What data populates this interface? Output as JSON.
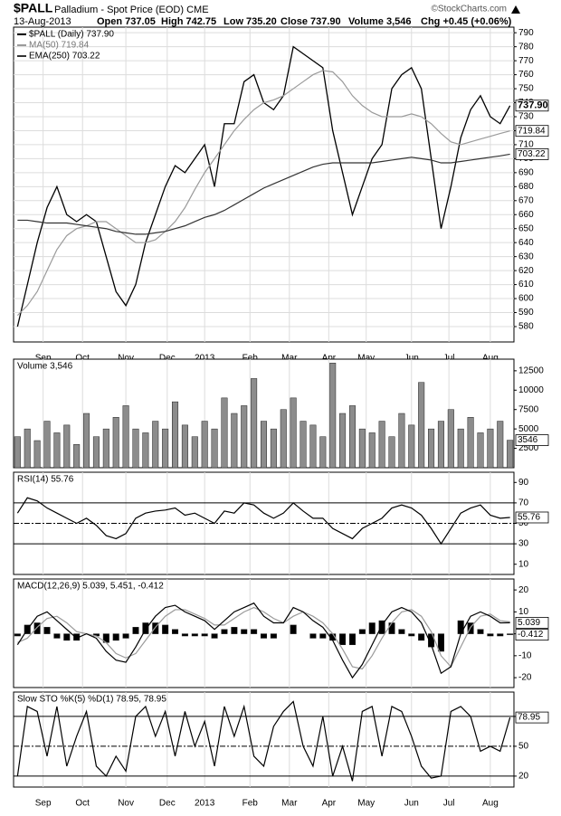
{
  "header": {
    "symbol": "$PALL",
    "name": "Palladium - Spot Price (EOD) CME",
    "source": "©StockCharts.com",
    "date": "13-Aug-2013",
    "stats": [
      "Open 737.05",
      "High 742.75",
      "Low 735.20",
      "Close 737.90",
      "Volume 3,546",
      "Chg +0.45 (+0.06%)"
    ]
  },
  "chart_data": [
    {
      "type": "line",
      "grid": true,
      "x": [
        0,
        5,
        10,
        15,
        20,
        25,
        30,
        35,
        40,
        45,
        50,
        55,
        60,
        65,
        70,
        75,
        80,
        85,
        90,
        95,
        100,
        105,
        110,
        115,
        120,
        125,
        130,
        135,
        140,
        145,
        150,
        155,
        160,
        165,
        170,
        175,
        180,
        185,
        190,
        195,
        200,
        205,
        210,
        215,
        220,
        225,
        230,
        235,
        240,
        245,
        250
      ],
      "xlim": [
        -2,
        252
      ],
      "xticks": [
        {
          "value": 13,
          "label": "Sep"
        },
        {
          "value": 33,
          "label": "Oct"
        },
        {
          "value": 55,
          "label": "Nov"
        },
        {
          "value": 76,
          "label": "Dec"
        },
        {
          "value": 95,
          "label": "2013"
        },
        {
          "value": 118,
          "label": "Feb"
        },
        {
          "value": 138,
          "label": "Mar"
        },
        {
          "value": 158,
          "label": "Apr"
        },
        {
          "value": 177,
          "label": "May"
        },
        {
          "value": 200,
          "label": "Jun"
        },
        {
          "value": 219,
          "label": "Jul"
        },
        {
          "value": 240,
          "label": "Aug"
        }
      ],
      "ylim": [
        569,
        794
      ],
      "yticks": [
        580,
        590,
        600,
        610,
        620,
        630,
        640,
        650,
        660,
        670,
        680,
        690,
        700,
        710,
        720,
        730,
        740,
        750,
        760,
        770,
        780,
        790
      ],
      "series": [
        {
          "name": "$PALL (Daily) 737.90",
          "color": "#000000",
          "style": "line",
          "end_label": "737.90",
          "values": [
            580,
            610,
            640,
            665,
            680,
            660,
            655,
            660,
            655,
            630,
            605,
            595,
            610,
            640,
            660,
            680,
            695,
            690,
            700,
            710,
            680,
            725,
            725,
            755,
            760,
            740,
            735,
            745,
            780,
            775,
            770,
            765,
            720,
            690,
            660,
            680,
            700,
            710,
            750,
            760,
            765,
            750,
            700,
            650,
            680,
            715,
            735,
            745,
            730,
            725,
            737.9
          ]
        },
        {
          "name": "MA(50) 719.84",
          "color": "#9a9a9a",
          "style": "line",
          "end_label": true,
          "values": [
            588,
            595,
            605,
            620,
            635,
            645,
            650,
            652,
            655,
            655,
            650,
            645,
            640,
            640,
            642,
            648,
            655,
            665,
            678,
            690,
            700,
            710,
            720,
            728,
            735,
            740,
            742,
            745,
            750,
            755,
            760,
            763,
            762,
            755,
            745,
            738,
            733,
            730,
            730,
            730,
            732,
            730,
            725,
            718,
            712,
            710,
            712,
            714,
            716,
            718,
            719.84
          ]
        },
        {
          "name": "EMA(250) 703.22",
          "color": "#333333",
          "style": "line",
          "end_label": true,
          "values": [
            656,
            656,
            655,
            654,
            654,
            654,
            653,
            652,
            651,
            650,
            648,
            647,
            646,
            646,
            647,
            648,
            650,
            652,
            655,
            658,
            660,
            663,
            667,
            671,
            675,
            679,
            682,
            685,
            688,
            691,
            694,
            696,
            697,
            697,
            697,
            697,
            697,
            698,
            699,
            700,
            701,
            700,
            699,
            697,
            697,
            698,
            699,
            700,
            701,
            702,
            703.22
          ]
        }
      ]
    },
    {
      "type": "bar",
      "title": "Volume 3,546",
      "ylim": [
        0,
        14000
      ],
      "yticks": [
        2500,
        5000,
        7500,
        10000,
        12500
      ],
      "series": [
        {
          "color": "#8c8c8c",
          "style": "bars",
          "end_label": true,
          "values": [
            4000,
            5000,
            3500,
            6000,
            4500,
            5500,
            3000,
            7000,
            4000,
            5000,
            6500,
            8000,
            5000,
            4500,
            6000,
            5000,
            8500,
            5500,
            4000,
            6000,
            5000,
            9000,
            7000,
            8000,
            11500,
            6000,
            5000,
            7500,
            9000,
            6000,
            5500,
            4000,
            13500,
            7000,
            8000,
            5000,
            4500,
            6000,
            4000,
            7000,
            5500,
            11000,
            5000,
            6000,
            7500,
            5000,
            6500,
            4500,
            5000,
            6000,
            3546
          ]
        }
      ]
    },
    {
      "type": "line",
      "title": "RSI(14) 55.76",
      "ylim": [
        0,
        100
      ],
      "yticks": [
        10,
        30,
        50,
        70,
        90
      ],
      "hlines": [
        {
          "value": 70,
          "style": "solid"
        },
        {
          "value": 50,
          "style": "dashdot"
        },
        {
          "value": 30,
          "style": "solid"
        }
      ],
      "series": [
        {
          "color": "#000000",
          "style": "line",
          "end_label": true,
          "values": [
            60,
            75,
            72,
            65,
            60,
            55,
            50,
            55,
            48,
            38,
            35,
            40,
            55,
            60,
            62,
            63,
            65,
            58,
            60,
            55,
            50,
            62,
            60,
            70,
            68,
            60,
            55,
            60,
            70,
            62,
            55,
            55,
            45,
            40,
            35,
            45,
            50,
            55,
            65,
            68,
            65,
            58,
            45,
            30,
            45,
            60,
            65,
            68,
            58,
            55,
            55.76
          ]
        }
      ]
    },
    {
      "type": "line",
      "title": "MACD(12,26,9) 5.039, 5.451, -0.412",
      "ylim": [
        -24.5,
        25
      ],
      "yticks": [
        -20,
        -10,
        0,
        10,
        20
      ],
      "series": [
        {
          "color": "#000000",
          "style": "bars",
          "end_label": true,
          "values": [
            -1,
            4,
            5,
            3,
            -2,
            -3,
            -3,
            0,
            -1,
            -4,
            -3,
            -2,
            3,
            5,
            5,
            4,
            2,
            -1,
            -1,
            -1,
            -2,
            2,
            3,
            2,
            2,
            -2,
            -2,
            0,
            4,
            0,
            -2,
            -2,
            -3,
            -5,
            -5,
            2,
            5,
            6,
            5,
            2,
            -1,
            -3,
            -6,
            -8,
            0,
            6,
            5,
            2,
            -1,
            -1,
            -0.412
          ]
        },
        {
          "color": "#9a9a9a",
          "style": "line",
          "values": [
            -4,
            -2,
            3,
            7,
            8,
            5,
            1,
            0,
            -1,
            -4,
            -9,
            -11,
            -9,
            -3,
            3,
            8,
            11,
            11,
            9,
            7,
            4,
            4,
            7,
            10,
            12,
            10,
            7,
            5,
            8,
            10,
            8,
            5,
            0,
            -7,
            -15,
            -16,
            -10,
            -2,
            5,
            10,
            11,
            8,
            1,
            -10,
            -15,
            -6,
            3,
            8,
            9,
            6,
            5.451
          ]
        },
        {
          "color": "#000000",
          "style": "line",
          "end_label": true,
          "values": [
            -5,
            2,
            8,
            10,
            6,
            2,
            -2,
            0,
            -2,
            -8,
            -12,
            -13,
            -6,
            2,
            8,
            12,
            13,
            10,
            8,
            6,
            2,
            6,
            10,
            12,
            14,
            8,
            5,
            5,
            12,
            10,
            6,
            3,
            -3,
            -12,
            -20,
            -14,
            -5,
            4,
            10,
            12,
            10,
            5,
            -5,
            -18,
            -15,
            0,
            8,
            10,
            8,
            5,
            5.039
          ]
        }
      ]
    },
    {
      "type": "line",
      "title": "Slow STO %K(5) %D(1) 78.95, 78.95",
      "ylim": [
        9,
        104.5
      ],
      "yticks": [
        20,
        50,
        80
      ],
      "hlines": [
        {
          "value": 80,
          "style": "solid"
        },
        {
          "value": 50,
          "style": "dashdot"
        },
        {
          "value": 20,
          "style": "solid"
        }
      ],
      "xticks": [
        {
          "value": 13,
          "label": "Sep"
        },
        {
          "value": 33,
          "label": "Oct"
        },
        {
          "value": 55,
          "label": "Nov"
        },
        {
          "value": 76,
          "label": "Dec"
        },
        {
          "value": 95,
          "label": "2013"
        },
        {
          "value": 118,
          "label": "Feb"
        },
        {
          "value": 138,
          "label": "Mar"
        },
        {
          "value": 158,
          "label": "Apr"
        },
        {
          "value": 177,
          "label": "May"
        },
        {
          "value": 200,
          "label": "Jun"
        },
        {
          "value": 219,
          "label": "Jul"
        },
        {
          "value": 240,
          "label": "Aug"
        }
      ],
      "series": [
        {
          "color": "#000000",
          "style": "line",
          "end_label": true,
          "values": [
            20,
            90,
            85,
            40,
            90,
            30,
            60,
            85,
            30,
            20,
            40,
            25,
            80,
            90,
            60,
            85,
            40,
            85,
            50,
            75,
            30,
            90,
            60,
            90,
            40,
            30,
            70,
            85,
            95,
            50,
            30,
            80,
            20,
            50,
            15,
            85,
            90,
            40,
            90,
            85,
            60,
            30,
            18,
            20,
            85,
            90,
            80,
            45,
            50,
            45,
            78.95
          ]
        }
      ]
    }
  ]
}
